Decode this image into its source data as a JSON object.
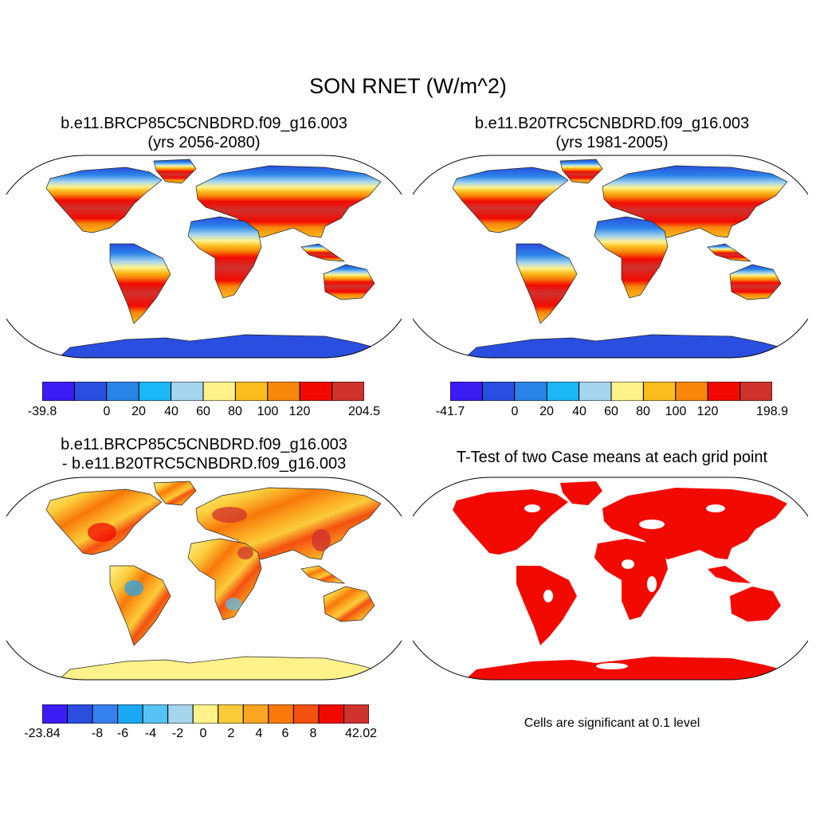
{
  "figure_title": "SON RNET (W/m^2)",
  "panels": [
    {
      "title_line1": "b.e11.BRCP85C5CNBDRD.f09_g16.003",
      "title_line2": "(yrs 2056-2080)",
      "colorbar": {
        "colors": [
          "#3b1cf5",
          "#2a4ee0",
          "#2a85e8",
          "#1ab8f5",
          "#a6d5ef",
          "#fff28a",
          "#fbbd1e",
          "#f8880a",
          "#f20a00",
          "#d0322d"
        ],
        "tick_labels": [
          "-39.8",
          "0",
          "20",
          "40",
          "60",
          "80",
          "100",
          "120",
          "204.5"
        ]
      }
    },
    {
      "title_line1": "b.e11.B20TRC5CNBDRD.f09_g16.003",
      "title_line2": "(yrs 1981-2005)",
      "colorbar": {
        "colors": [
          "#3b1cf5",
          "#2a4ee0",
          "#2a85e8",
          "#1ab8f5",
          "#a6d5ef",
          "#fff28a",
          "#fbbd1e",
          "#f8880a",
          "#f20a00",
          "#d0322d"
        ],
        "tick_labels": [
          "-41.7",
          "0",
          "20",
          "40",
          "60",
          "80",
          "100",
          "120",
          "198.9"
        ]
      }
    },
    {
      "title_line1": "b.e11.BRCP85C5CNBDRD.f09_g16.003",
      "title_line2": "- b.e11.B20TRC5CNBDRD.f09_g16.003",
      "colorbar": {
        "colors": [
          "#3b1cf5",
          "#2a4ee0",
          "#3580ef",
          "#1aa8f5",
          "#55c3f5",
          "#a6d5ef",
          "#fff28a",
          "#fbcc3a",
          "#fba520",
          "#f8780a",
          "#f45010",
          "#f20a00",
          "#d0322d"
        ],
        "tick_labels": [
          "-23.84",
          "-8",
          "-6",
          "-4",
          "-2",
          "0",
          "2",
          "4",
          "6",
          "8",
          "42.02"
        ]
      }
    },
    {
      "title_line1": "T-Test of two Case means at each grid point",
      "note": "Cells are significant at 0.1 level"
    }
  ]
}
